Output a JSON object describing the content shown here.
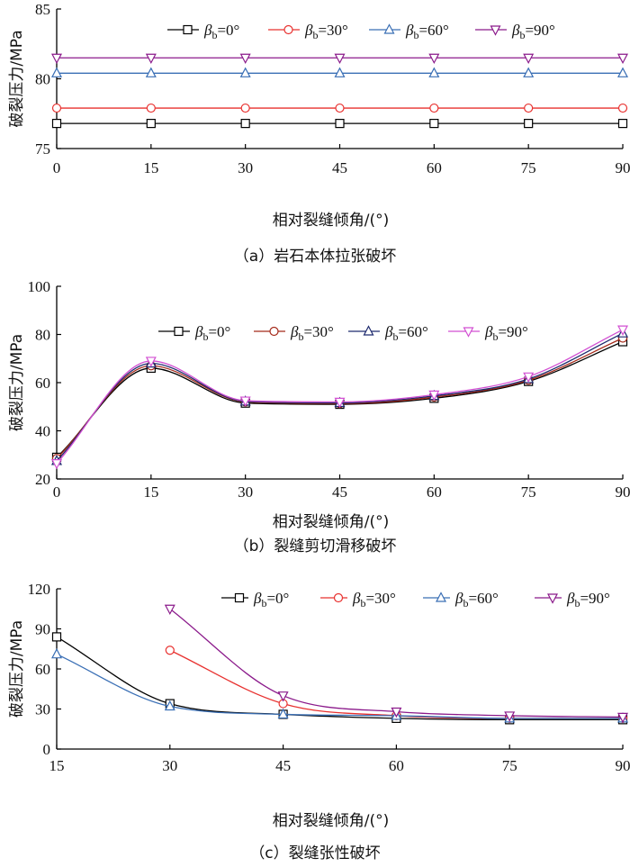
{
  "charts": [
    {
      "caption": "（a）岩石本体拉张破坏",
      "xlabel": "相对裂缝倾角/(°)",
      "ylabel": "破裂压力/MPa",
      "chart_data": {
        "type": "line",
        "x": [
          0,
          15,
          30,
          45,
          60,
          75,
          90
        ],
        "xlim": [
          0,
          90
        ],
        "ylim": [
          75,
          85
        ],
        "xticks": [
          "0",
          "15",
          "30",
          "45",
          "60",
          "75",
          "90"
        ],
        "yticks": [
          "75",
          "80",
          "85"
        ],
        "legend_placement": "top",
        "series": [
          {
            "name": "βb=0°",
            "color": "#000000",
            "marker": "square",
            "values": [
              76.8,
              76.8,
              76.8,
              76.8,
              76.8,
              76.8,
              76.8
            ]
          },
          {
            "name": "βb=30°",
            "color": "#e8312f",
            "marker": "circle",
            "values": [
              77.9,
              77.9,
              77.9,
              77.9,
              77.9,
              77.9,
              77.9
            ]
          },
          {
            "name": "βb=60°",
            "color": "#3a6fb5",
            "marker": "triangle-up",
            "values": [
              80.4,
              80.4,
              80.4,
              80.4,
              80.4,
              80.4,
              80.4
            ]
          },
          {
            "name": "βb=90°",
            "color": "#8b1a8b",
            "marker": "triangle-down",
            "values": [
              81.5,
              81.5,
              81.5,
              81.5,
              81.5,
              81.5,
              81.5
            ]
          }
        ]
      }
    },
    {
      "caption": "（b）裂缝剪切滑移破坏",
      "xlabel": "相对裂缝倾角/(°)",
      "ylabel": "破裂压力/MPa",
      "chart_data": {
        "type": "line",
        "x": [
          0,
          15,
          30,
          45,
          60,
          75,
          90
        ],
        "xlim": [
          0,
          90
        ],
        "ylim": [
          20,
          100
        ],
        "xticks": [
          "0",
          "15",
          "30",
          "45",
          "60",
          "75",
          "90"
        ],
        "yticks": [
          "20",
          "40",
          "60",
          "80",
          "100"
        ],
        "legend_placement": "top",
        "series": [
          {
            "name": "βb=0°",
            "color": "#000000",
            "marker": "square",
            "values": [
              29,
              66,
              51.5,
              51,
              53.5,
              60.5,
              77
            ]
          },
          {
            "name": "βb=30°",
            "color": "#a52a1a",
            "marker": "circle",
            "values": [
              28.5,
              67,
              52,
              51.3,
              54,
              61,
              78.5
            ]
          },
          {
            "name": "βb=60°",
            "color": "#1e2a6e",
            "marker": "triangle-up",
            "values": [
              27.5,
              68,
              52.2,
              51.6,
              54.5,
              61.5,
              80.5
            ]
          },
          {
            "name": "βb=90°",
            "color": "#d24fd2",
            "marker": "triangle-down",
            "values": [
              26.5,
              69,
              52.5,
              52,
              55,
              62.5,
              82
            ]
          }
        ]
      }
    },
    {
      "caption": "（c）裂缝张性破坏",
      "xlabel": "相对裂缝倾角/(°)",
      "ylabel": "破裂压力/MPa",
      "chart_data": {
        "type": "line",
        "x": [
          15,
          30,
          45,
          60,
          75,
          90
        ],
        "xlim": [
          15,
          90
        ],
        "ylim": [
          0,
          120
        ],
        "xticks": [
          "15",
          "30",
          "45",
          "60",
          "75",
          "90"
        ],
        "yticks": [
          "0",
          "30",
          "60",
          "90",
          "120"
        ],
        "legend_placement": "top",
        "series": [
          {
            "name": "βb=0°",
            "color": "#000000",
            "marker": "square",
            "values": [
              84,
              34,
              26,
              23,
              22,
              22
            ]
          },
          {
            "name": "βb=30°",
            "color": "#e8312f",
            "marker": "circle",
            "values": [
              null,
              74,
              34,
              25,
              23,
              23
            ]
          },
          {
            "name": "βb=60°",
            "color": "#3a6fb5",
            "marker": "triangle-up",
            "values": [
              71,
              32,
              26,
              25,
              23,
              23
            ]
          },
          {
            "name": "βb=90°",
            "color": "#8b1a8b",
            "marker": "triangle-down",
            "values": [
              null,
              105,
              40,
              28,
              25,
              24
            ]
          }
        ]
      }
    }
  ]
}
